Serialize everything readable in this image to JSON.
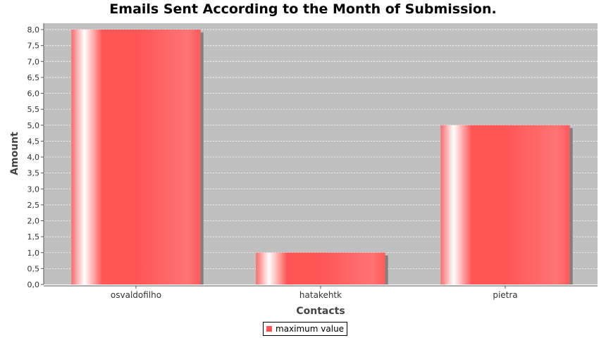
{
  "chart_data": {
    "type": "bar",
    "title": "Emails Sent According to the Month of Submission.",
    "xlabel": "Contacts",
    "ylabel": "Amount",
    "categories": [
      "osvaldofilho",
      "hatakehtk",
      "pietra"
    ],
    "series": [
      {
        "name": "maximum value",
        "values": [
          8,
          1,
          5
        ]
      }
    ],
    "ylim": [
      0,
      8.2
    ],
    "ytick_step": 0.5,
    "ytick_labels": [
      "0,0",
      "0,5",
      "1,0",
      "1,5",
      "2,0",
      "2,5",
      "3,0",
      "3,5",
      "4,0",
      "4,5",
      "5,0",
      "5,5",
      "6,0",
      "6,5",
      "7,0",
      "7,5",
      "8,0"
    ],
    "grid": true,
    "legend_position": "bottom-center",
    "colors": {
      "plot_background": "#c0c0c0",
      "bar": "#ff5555",
      "bar_highlight": "#ffffff",
      "bar_shadow": "#808080",
      "gridline": "#ffffff"
    }
  }
}
